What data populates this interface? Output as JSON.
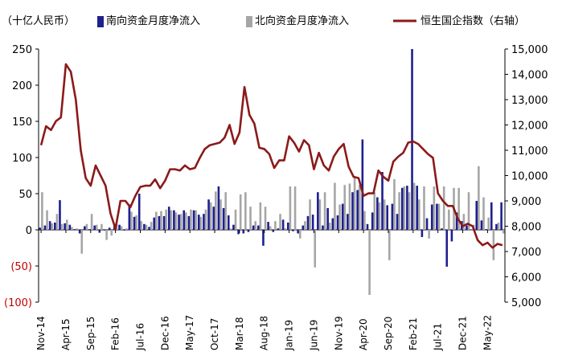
{
  "chart_data": {
    "type": "bar",
    "unit_label": "（十亿人民币）",
    "legend": [
      {
        "key": "south",
        "label": "南向资金月度净流入",
        "color": "#1f1f8f"
      },
      {
        "key": "north",
        "label": "北向资金月度净流入",
        "color": "#a6a6a6"
      },
      {
        "key": "hscei",
        "label": "恒生国企指数（右轴）",
        "color": "#8b1a1a"
      }
    ],
    "y_left": {
      "min": -100,
      "max": 250,
      "ticks": [
        "250",
        "200",
        "150",
        "100",
        "50",
        "0",
        "(50)",
        "(100)"
      ],
      "tick_values": [
        250,
        200,
        150,
        100,
        50,
        0,
        -50,
        -100
      ]
    },
    "y_right": {
      "min": 5000,
      "max": 15000,
      "ticks": [
        "15,000",
        "14,000",
        "13,000",
        "12,000",
        "11,000",
        "10,000",
        "9,000",
        "8,000",
        "7,000",
        "6,000",
        "5,000"
      ],
      "tick_values": [
        15000,
        14000,
        13000,
        12000,
        11000,
        10000,
        9000,
        8000,
        7000,
        6000,
        5000
      ]
    },
    "x_tick_labels": [
      {
        "label": "Nov-14",
        "index": 0
      },
      {
        "label": "Apr-15",
        "index": 5
      },
      {
        "label": "Sep-15",
        "index": 10
      },
      {
        "label": "Feb-16",
        "index": 15
      },
      {
        "label": "Jul-16",
        "index": 20
      },
      {
        "label": "Dec-16",
        "index": 25
      },
      {
        "label": "May-17",
        "index": 30
      },
      {
        "label": "Oct-17",
        "index": 35
      },
      {
        "label": "Mar-18",
        "index": 40
      },
      {
        "label": "Aug-18",
        "index": 45
      },
      {
        "label": "Jan-19",
        "index": 50
      },
      {
        "label": "Jun-19",
        "index": 55
      },
      {
        "label": "Nov-19",
        "index": 60
      },
      {
        "label": "Apr-20",
        "index": 65
      },
      {
        "label": "Sep-20",
        "index": 70
      },
      {
        "label": "Feb-21",
        "index": 75
      },
      {
        "label": "Jul-21",
        "index": 80
      },
      {
        "label": "Dec-21",
        "index": 85
      },
      {
        "label": "May-22",
        "index": 90
      }
    ],
    "series": [
      {
        "name": "南向资金月度净流入",
        "values": [
          3,
          6,
          12,
          10,
          41,
          9,
          7,
          1,
          -5,
          5,
          1,
          6,
          -4,
          -1,
          3,
          8,
          7,
          -1,
          35,
          18,
          50,
          8,
          4,
          17,
          19,
          19,
          32,
          27,
          21,
          27,
          19,
          27,
          21,
          22,
          42,
          32,
          60,
          30,
          20,
          7,
          -6,
          -5,
          -3,
          6,
          6,
          -22,
          11,
          -3,
          2,
          14,
          10,
          -2,
          -5,
          6,
          19,
          21,
          52,
          6,
          30,
          16,
          20,
          36,
          22,
          52,
          55,
          125,
          8,
          24,
          45,
          80,
          34,
          36,
          22,
          58,
          61,
          250,
          61,
          -10,
          16,
          35,
          36,
          2,
          -51,
          -16,
          24,
          12,
          6,
          0,
          40,
          13,
          1,
          38,
          8,
          38
        ]
      },
      {
        "name": "北向资金月度净流入",
        "values": [
          52,
          27,
          9,
          22,
          8,
          14,
          4,
          2,
          -33,
          8,
          22,
          7,
          8,
          -14,
          -8,
          8,
          5,
          2,
          25,
          20,
          12,
          7,
          11,
          25,
          26,
          28,
          27,
          24,
          22,
          24,
          28,
          27,
          18,
          28,
          38,
          53,
          42,
          52,
          2,
          28,
          49,
          52,
          32,
          12,
          38,
          32,
          5,
          12,
          22,
          2,
          60,
          60,
          -12,
          12,
          42,
          -52,
          42,
          52,
          10,
          65,
          35,
          62,
          64,
          73,
          62,
          26,
          -90,
          52,
          38,
          42,
          -42,
          70,
          52,
          60,
          52,
          65,
          42,
          60,
          -12,
          60,
          36,
          60,
          28,
          58,
          58,
          22,
          52,
          7,
          88,
          45,
          17,
          -42,
          10,
          -5
        ]
      },
      {
        "name": "恒生国企指数（右轴）",
        "values": [
          11200,
          11950,
          11800,
          12150,
          12300,
          14400,
          14100,
          13000,
          11000,
          9900,
          9600,
          10400,
          10000,
          9600,
          8500,
          7900,
          9000,
          9000,
          8750,
          9200,
          9550,
          9600,
          9600,
          9850,
          9500,
          9800,
          10250,
          10250,
          10200,
          10400,
          10250,
          10300,
          10700,
          11050,
          11200,
          11250,
          11300,
          11500,
          12000,
          11250,
          11700,
          13500,
          12400,
          12050,
          11100,
          11050,
          10850,
          10300,
          10600,
          10600,
          11550,
          11300,
          10950,
          11400,
          11200,
          10250,
          10900,
          10400,
          10200,
          10750,
          11050,
          11250,
          10350,
          9950,
          9900,
          9200,
          9300,
          9300,
          10200,
          9950,
          9800,
          10550,
          10750,
          10900,
          11300,
          11350,
          11250,
          11050,
          10850,
          10700,
          9300,
          9000,
          8800,
          8800,
          8300,
          8000,
          8100,
          8000,
          7450,
          7250,
          7350,
          7150,
          7300,
          7250
        ]
      }
    ]
  }
}
